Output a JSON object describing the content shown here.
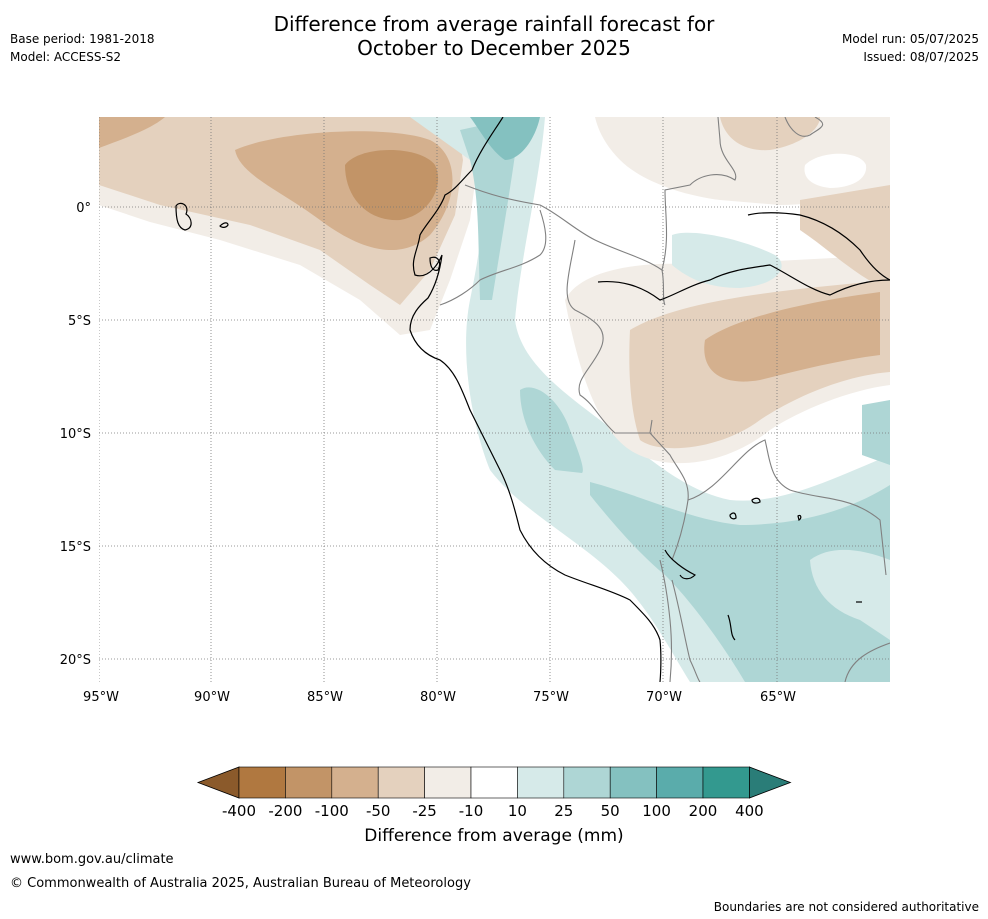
{
  "title_line1": "Difference from average rainfall forecast for",
  "title_line2": "October to December 2025",
  "meta_left": [
    "Base period: 1981-2018",
    "Model: ACCESS-S2"
  ],
  "meta_right": [
    "Model run: 05/07/2025",
    "Issued: 08/07/2025"
  ],
  "map": {
    "lat_labels": [
      "0°",
      "5°S",
      "10°S",
      "15°S",
      "20°S"
    ],
    "lon_labels": [
      "95°W",
      "90°W",
      "85°W",
      "80°W",
      "75°W",
      "70°W",
      "65°W"
    ],
    "gridlines": true
  },
  "colorbar": {
    "ticks": [
      "-400",
      "-200",
      "-100",
      "-50",
      "-25",
      "-10",
      "10",
      "25",
      "50",
      "100",
      "200",
      "400"
    ],
    "colors": [
      "#8b5a2b",
      "#b07840",
      "#c29467",
      "#d4b08e",
      "#e4d1be",
      "#f2ede7",
      "#ffffff",
      "#d6eae9",
      "#aed6d5",
      "#84c1c0",
      "#5aacab",
      "#33998f",
      "#2a7d78"
    ],
    "label": "Difference from average (mm)"
  },
  "footer": {
    "url": "www.bom.gov.au/climate",
    "copyright": "© Commonwealth of Australia 2025, Australian Bureau of Meteorology",
    "note": "Boundaries are not considered authoritative"
  }
}
